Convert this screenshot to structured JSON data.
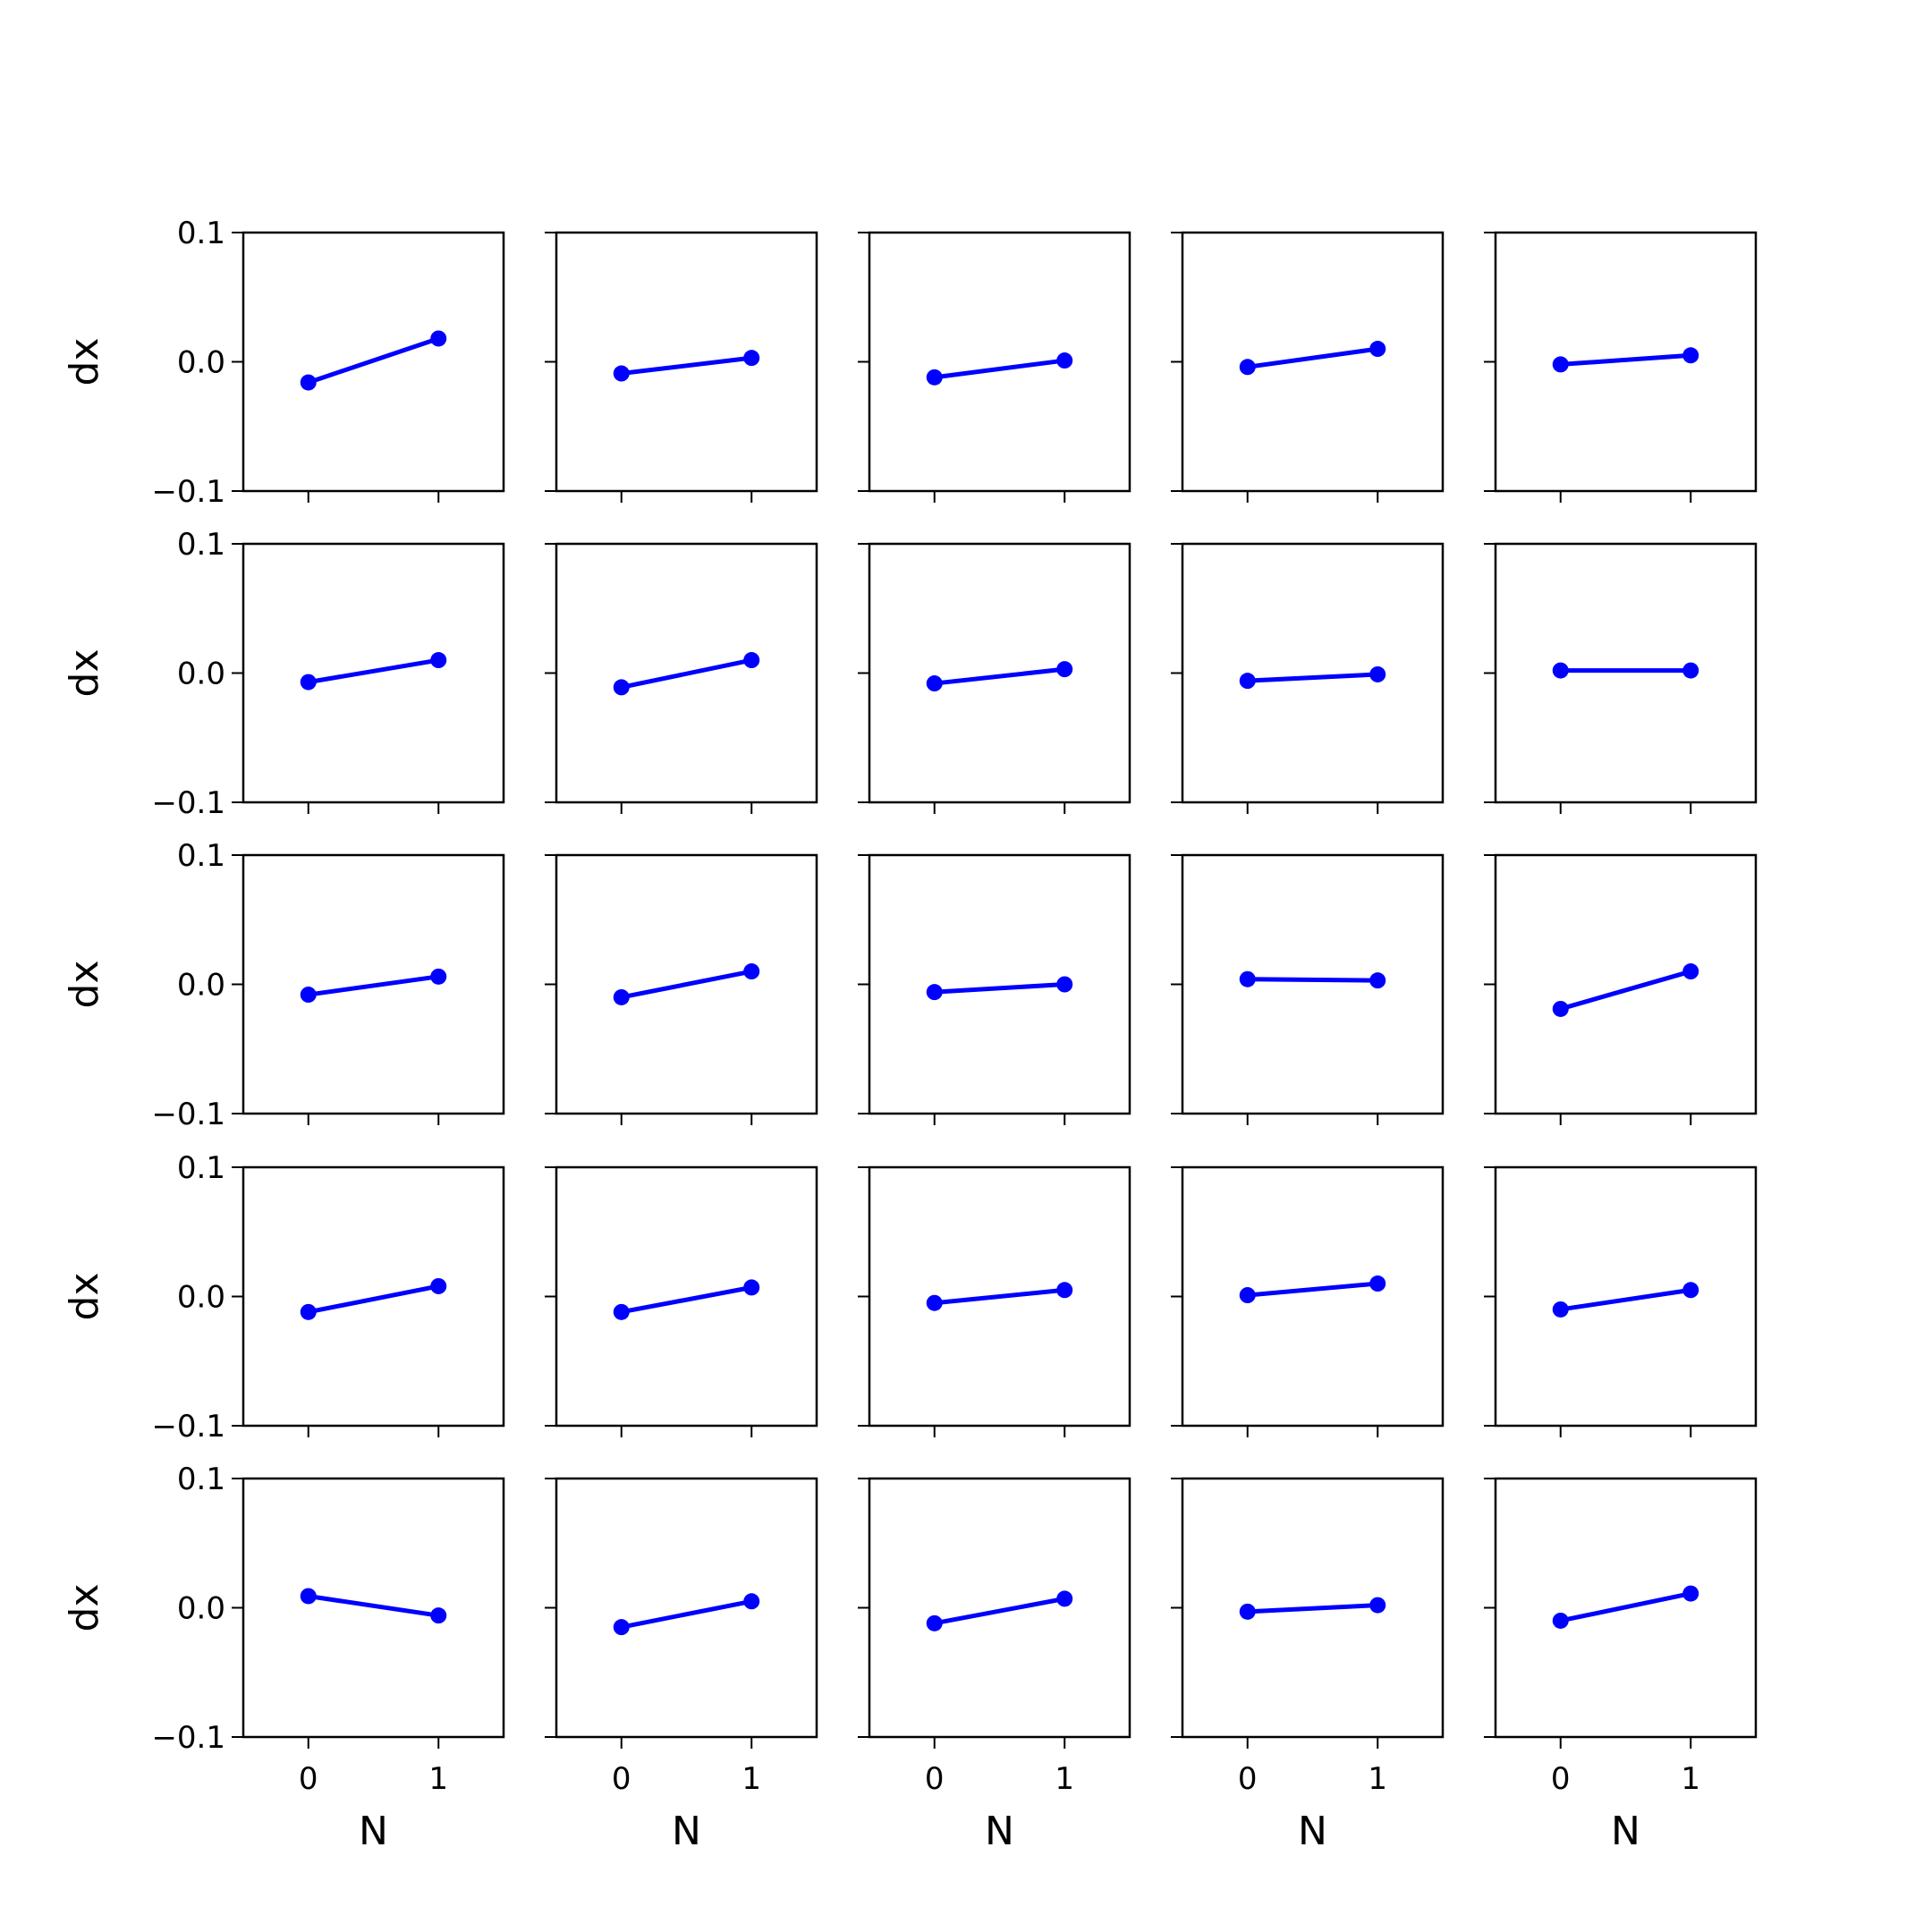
{
  "figure": {
    "ylabel": "dx",
    "xlabel": "N",
    "line_color": "#0000ff",
    "axes_color": "#000000",
    "background": "#ffffff"
  },
  "chart_data": [
    {
      "type": "line",
      "x": [
        0,
        1
      ],
      "y": [
        -0.016,
        0.018
      ],
      "xlim": [
        -0.5,
        1.5
      ],
      "ylim": [
        -0.1,
        0.1
      ],
      "xticks": [
        "0",
        "1"
      ],
      "yticks": [
        "0.1",
        "0.0",
        "−0.1"
      ],
      "xlabel": "",
      "ylabel": "dx"
    },
    {
      "type": "line",
      "x": [
        0,
        1
      ],
      "y": [
        -0.009,
        0.003
      ],
      "xlim": [
        -0.5,
        1.5
      ],
      "ylim": [
        -0.1,
        0.1
      ],
      "xticks": [
        "0",
        "1"
      ],
      "yticks": [],
      "xlabel": "",
      "ylabel": ""
    },
    {
      "type": "line",
      "x": [
        0,
        1
      ],
      "y": [
        -0.012,
        0.001
      ],
      "xlim": [
        -0.5,
        1.5
      ],
      "ylim": [
        -0.1,
        0.1
      ],
      "xticks": [
        "0",
        "1"
      ],
      "yticks": [],
      "xlabel": "",
      "ylabel": ""
    },
    {
      "type": "line",
      "x": [
        0,
        1
      ],
      "y": [
        -0.004,
        0.01
      ],
      "xlim": [
        -0.5,
        1.5
      ],
      "ylim": [
        -0.1,
        0.1
      ],
      "xticks": [
        "0",
        "1"
      ],
      "yticks": [],
      "xlabel": "",
      "ylabel": ""
    },
    {
      "type": "line",
      "x": [
        0,
        1
      ],
      "y": [
        -0.002,
        0.005
      ],
      "xlim": [
        -0.5,
        1.5
      ],
      "ylim": [
        -0.1,
        0.1
      ],
      "xticks": [
        "0",
        "1"
      ],
      "yticks": [],
      "xlabel": "",
      "ylabel": ""
    },
    {
      "type": "line",
      "x": [
        0,
        1
      ],
      "y": [
        -0.007,
        0.01
      ],
      "xlim": [
        -0.5,
        1.5
      ],
      "ylim": [
        -0.1,
        0.1
      ],
      "xticks": [
        "0",
        "1"
      ],
      "yticks": [
        "0.1",
        "0.0",
        "−0.1"
      ],
      "xlabel": "",
      "ylabel": "dx"
    },
    {
      "type": "line",
      "x": [
        0,
        1
      ],
      "y": [
        -0.011,
        0.01
      ],
      "xlim": [
        -0.5,
        1.5
      ],
      "ylim": [
        -0.1,
        0.1
      ],
      "xticks": [
        "0",
        "1"
      ],
      "yticks": [],
      "xlabel": "",
      "ylabel": ""
    },
    {
      "type": "line",
      "x": [
        0,
        1
      ],
      "y": [
        -0.008,
        0.003
      ],
      "xlim": [
        -0.5,
        1.5
      ],
      "ylim": [
        -0.1,
        0.1
      ],
      "xticks": [
        "0",
        "1"
      ],
      "yticks": [],
      "xlabel": "",
      "ylabel": ""
    },
    {
      "type": "line",
      "x": [
        0,
        1
      ],
      "y": [
        -0.006,
        -0.001
      ],
      "xlim": [
        -0.5,
        1.5
      ],
      "ylim": [
        -0.1,
        0.1
      ],
      "xticks": [
        "0",
        "1"
      ],
      "yticks": [],
      "xlabel": "",
      "ylabel": ""
    },
    {
      "type": "line",
      "x": [
        0,
        1
      ],
      "y": [
        0.002,
        0.002
      ],
      "xlim": [
        -0.5,
        1.5
      ],
      "ylim": [
        -0.1,
        0.1
      ],
      "xticks": [
        "0",
        "1"
      ],
      "yticks": [],
      "xlabel": "",
      "ylabel": ""
    },
    {
      "type": "line",
      "x": [
        0,
        1
      ],
      "y": [
        -0.008,
        0.006
      ],
      "xlim": [
        -0.5,
        1.5
      ],
      "ylim": [
        -0.1,
        0.1
      ],
      "xticks": [
        "0",
        "1"
      ],
      "yticks": [
        "0.1",
        "0.0",
        "−0.1"
      ],
      "xlabel": "",
      "ylabel": "dx"
    },
    {
      "type": "line",
      "x": [
        0,
        1
      ],
      "y": [
        -0.01,
        0.01
      ],
      "xlim": [
        -0.5,
        1.5
      ],
      "ylim": [
        -0.1,
        0.1
      ],
      "xticks": [
        "0",
        "1"
      ],
      "yticks": [],
      "xlabel": "",
      "ylabel": ""
    },
    {
      "type": "line",
      "x": [
        0,
        1
      ],
      "y": [
        -0.006,
        0.0
      ],
      "xlim": [
        -0.5,
        1.5
      ],
      "ylim": [
        -0.1,
        0.1
      ],
      "xticks": [
        "0",
        "1"
      ],
      "yticks": [],
      "xlabel": "",
      "ylabel": ""
    },
    {
      "type": "line",
      "x": [
        0,
        1
      ],
      "y": [
        0.004,
        0.003
      ],
      "xlim": [
        -0.5,
        1.5
      ],
      "ylim": [
        -0.1,
        0.1
      ],
      "xticks": [
        "0",
        "1"
      ],
      "yticks": [],
      "xlabel": "",
      "ylabel": ""
    },
    {
      "type": "line",
      "x": [
        0,
        1
      ],
      "y": [
        -0.019,
        0.01
      ],
      "xlim": [
        -0.5,
        1.5
      ],
      "ylim": [
        -0.1,
        0.1
      ],
      "xticks": [
        "0",
        "1"
      ],
      "yticks": [],
      "xlabel": "",
      "ylabel": ""
    },
    {
      "type": "line",
      "x": [
        0,
        1
      ],
      "y": [
        -0.012,
        0.008
      ],
      "xlim": [
        -0.5,
        1.5
      ],
      "ylim": [
        -0.1,
        0.1
      ],
      "xticks": [
        "0",
        "1"
      ],
      "yticks": [
        "0.1",
        "0.0",
        "−0.1"
      ],
      "xlabel": "",
      "ylabel": "dx"
    },
    {
      "type": "line",
      "x": [
        0,
        1
      ],
      "y": [
        -0.012,
        0.007
      ],
      "xlim": [
        -0.5,
        1.5
      ],
      "ylim": [
        -0.1,
        0.1
      ],
      "xticks": [
        "0",
        "1"
      ],
      "yticks": [],
      "xlabel": "",
      "ylabel": ""
    },
    {
      "type": "line",
      "x": [
        0,
        1
      ],
      "y": [
        -0.005,
        0.005
      ],
      "xlim": [
        -0.5,
        1.5
      ],
      "ylim": [
        -0.1,
        0.1
      ],
      "xticks": [
        "0",
        "1"
      ],
      "yticks": [],
      "xlabel": "",
      "ylabel": ""
    },
    {
      "type": "line",
      "x": [
        0,
        1
      ],
      "y": [
        0.001,
        0.01
      ],
      "xlim": [
        -0.5,
        1.5
      ],
      "ylim": [
        -0.1,
        0.1
      ],
      "xticks": [
        "0",
        "1"
      ],
      "yticks": [],
      "xlabel": "",
      "ylabel": ""
    },
    {
      "type": "line",
      "x": [
        0,
        1
      ],
      "y": [
        -0.01,
        0.005
      ],
      "xlim": [
        -0.5,
        1.5
      ],
      "ylim": [
        -0.1,
        0.1
      ],
      "xticks": [
        "0",
        "1"
      ],
      "yticks": [],
      "xlabel": "",
      "ylabel": ""
    },
    {
      "type": "line",
      "x": [
        0,
        1
      ],
      "y": [
        0.009,
        -0.006
      ],
      "xlim": [
        -0.5,
        1.5
      ],
      "ylim": [
        -0.1,
        0.1
      ],
      "xticks": [
        "0",
        "1"
      ],
      "yticks": [
        "0.1",
        "0.0",
        "−0.1"
      ],
      "xlabel": "N",
      "ylabel": "dx"
    },
    {
      "type": "line",
      "x": [
        0,
        1
      ],
      "y": [
        -0.015,
        0.005
      ],
      "xlim": [
        -0.5,
        1.5
      ],
      "ylim": [
        -0.1,
        0.1
      ],
      "xticks": [
        "0",
        "1"
      ],
      "yticks": [],
      "xlabel": "N",
      "ylabel": ""
    },
    {
      "type": "line",
      "x": [
        0,
        1
      ],
      "y": [
        -0.012,
        0.007
      ],
      "xlim": [
        -0.5,
        1.5
      ],
      "ylim": [
        -0.1,
        0.1
      ],
      "xticks": [
        "0",
        "1"
      ],
      "yticks": [],
      "xlabel": "N",
      "ylabel": ""
    },
    {
      "type": "line",
      "x": [
        0,
        1
      ],
      "y": [
        -0.003,
        0.002
      ],
      "xlim": [
        -0.5,
        1.5
      ],
      "ylim": [
        -0.1,
        0.1
      ],
      "xticks": [
        "0",
        "1"
      ],
      "yticks": [],
      "xlabel": "N",
      "ylabel": ""
    },
    {
      "type": "line",
      "x": [
        0,
        1
      ],
      "y": [
        -0.01,
        0.011
      ],
      "xlim": [
        -0.5,
        1.5
      ],
      "ylim": [
        -0.1,
        0.1
      ],
      "xticks": [
        "0",
        "1"
      ],
      "yticks": [],
      "xlabel": "N",
      "ylabel": ""
    }
  ]
}
